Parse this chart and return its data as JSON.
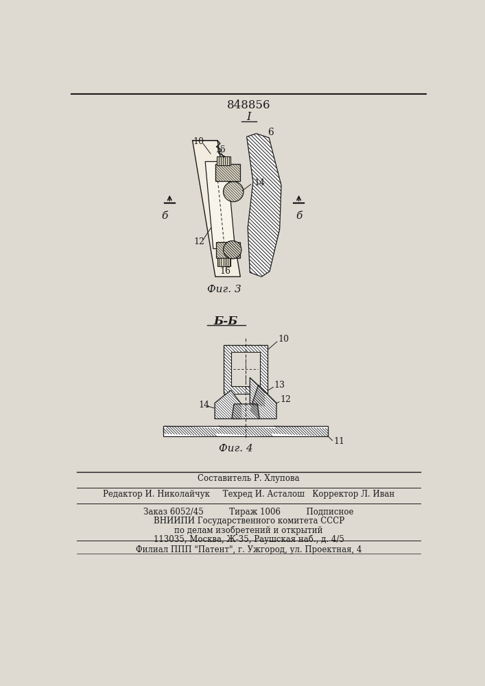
{
  "patent_number": "848856",
  "sheet_number": "I",
  "fig3_caption": "Фиг. 3",
  "fig4_caption": "Фиг. 4",
  "section_label": "Б-Б",
  "bg_color": "#dedad2",
  "line_color": "#1a1a1a"
}
